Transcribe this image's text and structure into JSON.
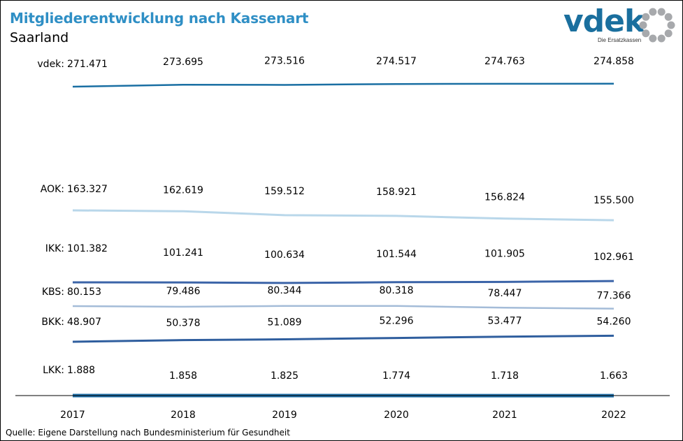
{
  "title": "Mitgliederentwicklung nach Kassenart",
  "subtitle": "Saarland",
  "logo": {
    "text": "vdek",
    "tagline": "Die Ersatzkassen"
  },
  "source": "Quelle: Eigene Darstellung nach Bundesministerium für Gesundheit",
  "chart_data": {
    "type": "line",
    "categories": [
      "2017",
      "2018",
      "2019",
      "2020",
      "2021",
      "2022"
    ],
    "series": [
      {
        "name": "vdek:",
        "color": "#1a6fa3",
        "labels": [
          "271.471",
          "273.695",
          "273.516",
          "274.517",
          "274.763",
          "274.858"
        ],
        "values": [
          271471,
          273695,
          273516,
          274517,
          274763,
          274858
        ]
      },
      {
        "name": "AOK:",
        "color": "#b9d7ea",
        "labels": [
          "163.327",
          "162.619",
          "159.512",
          "158.921",
          "156.824",
          "155.500"
        ],
        "values": [
          163327,
          162619,
          159512,
          158921,
          156824,
          155500
        ]
      },
      {
        "name": "IKK:",
        "color": "#3b64a8",
        "labels": [
          "101.382",
          "101.241",
          "100.634",
          "101.544",
          "101.905",
          "102.961"
        ],
        "values": [
          101382,
          101241,
          100634,
          101544,
          101905,
          102961
        ]
      },
      {
        "name": "KBS:",
        "color": "#a4bcd8",
        "labels": [
          "80.153",
          "79.486",
          "80.344",
          "80.318",
          "78.447",
          "77.366"
        ],
        "values": [
          80153,
          79486,
          80344,
          80318,
          78447,
          77366
        ]
      },
      {
        "name": "BKK:",
        "color": "#2f5e9e",
        "labels": [
          "48.907",
          "50.378",
          "51.089",
          "52.296",
          "53.477",
          "54.260"
        ],
        "values": [
          48907,
          50378,
          51089,
          52296,
          53477,
          54260
        ]
      },
      {
        "name": "LKK:",
        "color": "#1f6fa8",
        "labels": [
          "1.888",
          "1.858",
          "1.825",
          "1.774",
          "1.718",
          "1.663"
        ],
        "values": [
          1888,
          1858,
          1825,
          1774,
          1718,
          1663
        ]
      }
    ]
  }
}
